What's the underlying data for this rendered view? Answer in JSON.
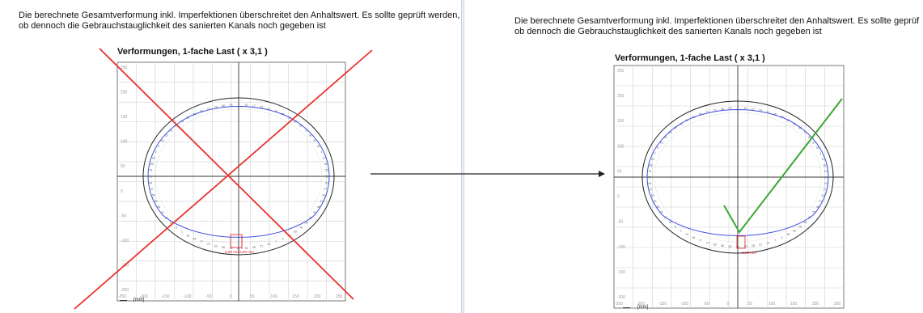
{
  "note_lines": [
    "Die berechnete Gesamtverformung inkl. Imperfektionen überschreitet den Anhaltswert. Es sollte geprüft werden,",
    "ob dennoch die Gebrauchstauglichkeit des sanierten Kanals noch gegeben ist"
  ],
  "note_lines_right": [
    "Die berechnete Gesamtverformung inkl. Imperfektionen überschreitet den Anhaltswert. Es sollte geprüf",
    "ob dennoch die Gebrauchstauglichkeit des sanierten Kanals noch gegeben ist"
  ],
  "plot_title": "Verformungen, 1-fache Last ( x 3,1 )",
  "axis_unit": "[mm]",
  "left_plot": {
    "y_ticks": [
      "250",
      "200",
      "150",
      "100",
      "50",
      "0",
      "-50",
      "-100",
      "-150",
      "-200"
    ],
    "x_ticks": [
      "-250",
      "-200",
      "-150",
      "-100",
      "-50",
      "0",
      "50",
      "100",
      "150",
      "200",
      "250"
    ],
    "dim_labels": [
      "5,90 mm",
      "5,90 mm"
    ],
    "verdict": "rejected"
  },
  "right_plot": {
    "y_ticks": [
      "250",
      "200",
      "150",
      "100",
      "50",
      "0",
      "-50",
      "-100",
      "-150",
      "-200"
    ],
    "x_ticks": [
      "-250",
      "-200",
      "-150",
      "-100",
      "-50",
      "0",
      "50",
      "100",
      "150",
      "200",
      "250"
    ],
    "dim_labels": [
      "5,90 mm"
    ],
    "verdict": "accepted"
  },
  "colors": {
    "cross": "#e8332f",
    "check": "#3aa835",
    "deformed": "#4050e0",
    "outline": "#222222",
    "dimension": "#e0202a",
    "grid": "#d0d0d0"
  }
}
